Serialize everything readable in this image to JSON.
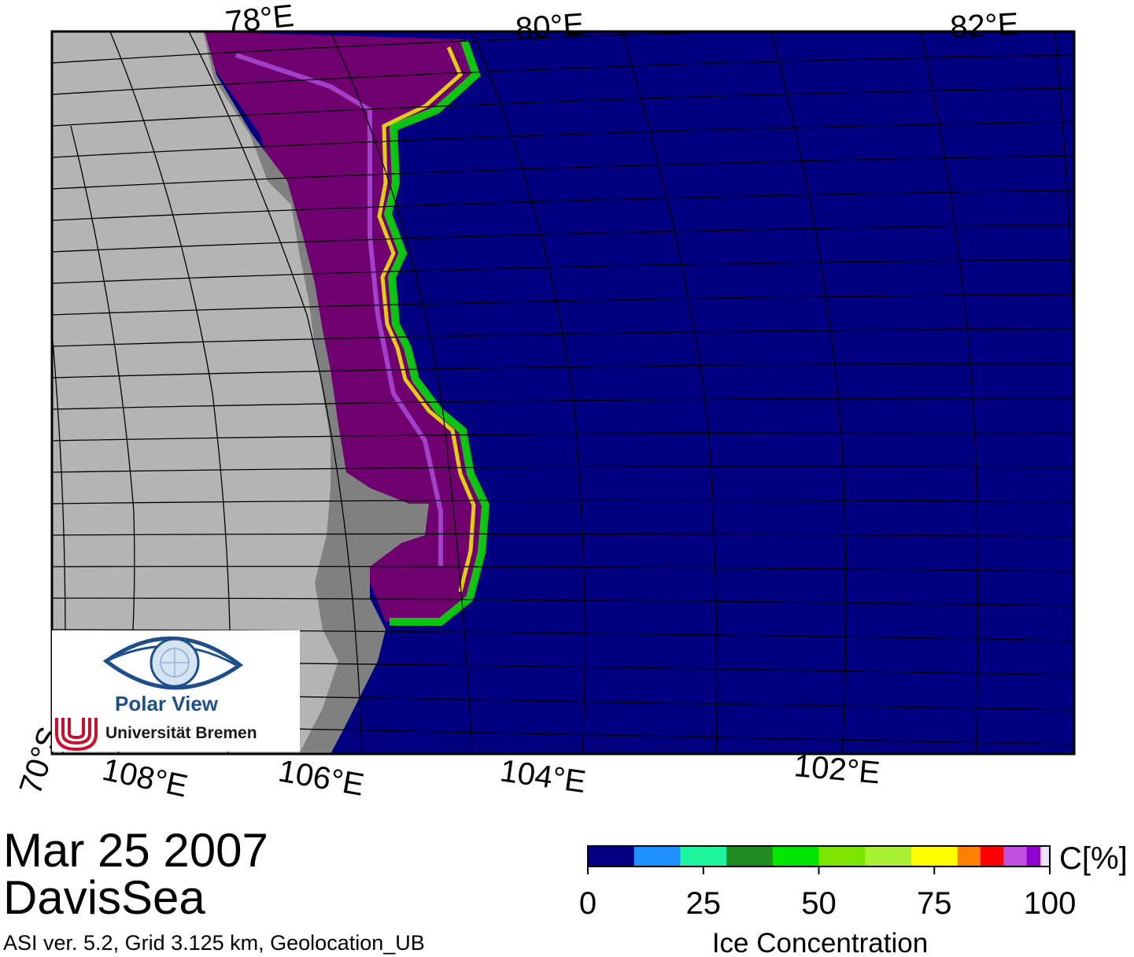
{
  "map": {
    "top_labels": [
      "78°E",
      "80°E",
      "82°E"
    ],
    "bottom_labels": [
      "70°S",
      "108°E",
      "106°E",
      "104°E",
      "102°E"
    ],
    "colors": {
      "ocean": "#000080",
      "land": "#b4b4b4",
      "ice_shelf": "#808080",
      "grid": "#000000"
    }
  },
  "logo": {
    "title": "Polar View",
    "institution": "Universität Bremen",
    "icon": "eye-globe-icon",
    "colors": {
      "blue": "#1f4f8a",
      "red": "#c8102e"
    }
  },
  "footer": {
    "date": "Mar 25 2007",
    "region": "DavisSea",
    "metadata": "ASI ver. 5.2,  Grid 3.125 km, Geolocation_UB"
  },
  "legend": {
    "unit": "C[%]",
    "title": "Ice Concentration",
    "ticks": [
      "0",
      "25",
      "50",
      "75",
      "100"
    ],
    "colors": [
      "#000080",
      "#1e90ff",
      "#1ef5a0",
      "#228b22",
      "#00e600",
      "#7ce600",
      "#aaf032",
      "#ffff00",
      "#ff8000",
      "#ff0000",
      "#c050e0",
      "#9000d0",
      "#f0e0ff"
    ]
  }
}
